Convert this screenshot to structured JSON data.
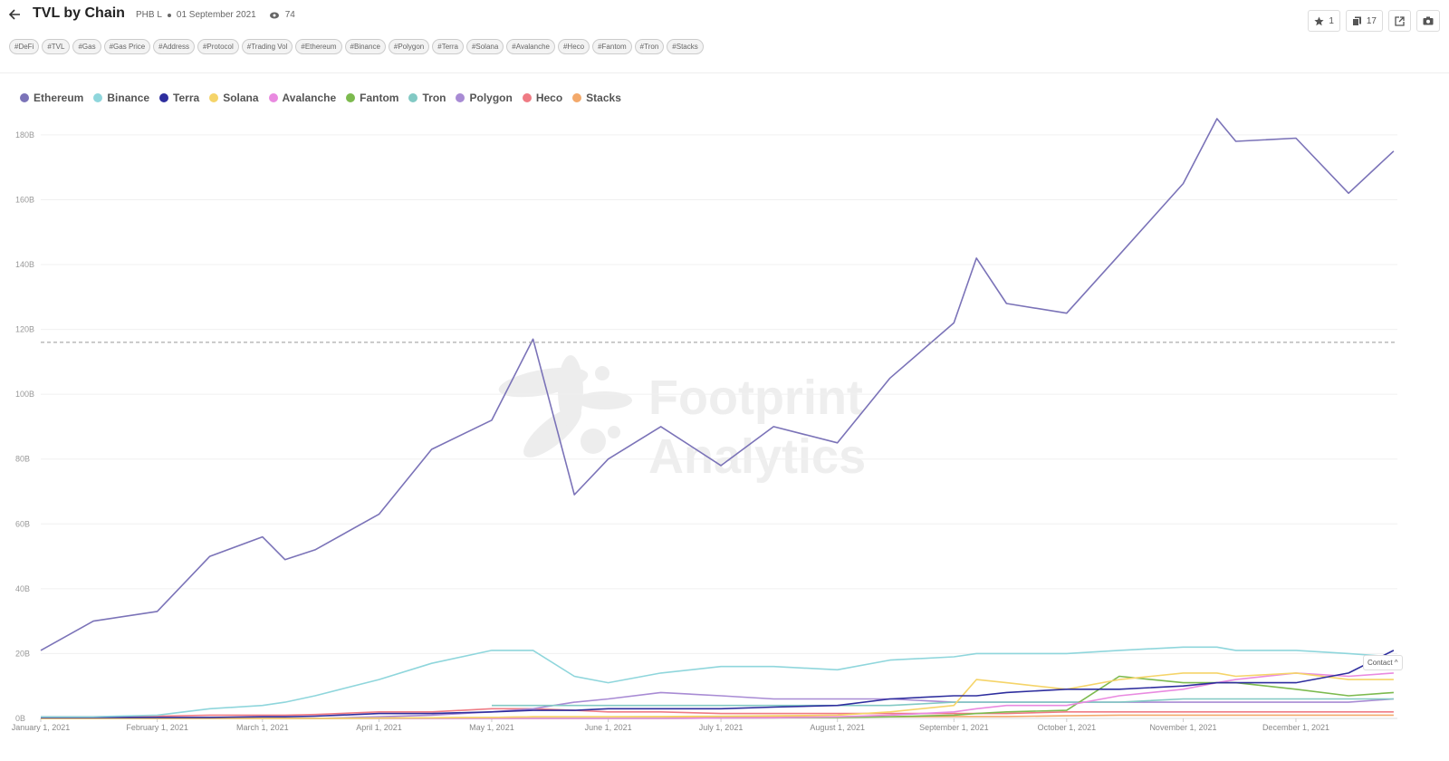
{
  "header": {
    "title": "TVL by Chain",
    "author": "PHB L",
    "date": "01 September 2021",
    "views": 74,
    "stars": 1,
    "copies": 17
  },
  "tags": [
    "#DeFi",
    "#TVL",
    "#Gas",
    "#Gas Price",
    "#Address",
    "#Protocol",
    "#Trading Vol",
    "#Ethereum",
    "#Binance",
    "#Polygon",
    "#Terra",
    "#Solana",
    "#Avalanche",
    "#Heco",
    "#Fantom",
    "#Tron",
    "#Stacks"
  ],
  "watermark": [
    "Footprint",
    "Analytics"
  ],
  "contact": "Contact",
  "chart_data": {
    "type": "line",
    "x": [
      "2021-01-01",
      "2021-01-15",
      "2021-02-01",
      "2021-02-15",
      "2021-03-01",
      "2021-03-07",
      "2021-03-15",
      "2021-04-01",
      "2021-04-15",
      "2021-05-01",
      "2021-05-12",
      "2021-05-23",
      "2021-06-01",
      "2021-06-15",
      "2021-07-01",
      "2021-07-15",
      "2021-08-01",
      "2021-08-15",
      "2021-09-01",
      "2021-09-07",
      "2021-09-15",
      "2021-10-01",
      "2021-10-15",
      "2021-11-01",
      "2021-11-10",
      "2021-11-15",
      "2021-12-01",
      "2021-12-15",
      "2021-12-27"
    ],
    "series": [
      {
        "name": "Ethereum",
        "color": "#7b73b8",
        "values": [
          21,
          30,
          33,
          50,
          56,
          49,
          52,
          63,
          83,
          92,
          117,
          69,
          80,
          90,
          78,
          90,
          85,
          105,
          122,
          142,
          128,
          125,
          143,
          165,
          185,
          178,
          179,
          162,
          175
        ]
      },
      {
        "name": "Binance",
        "color": "#8fd6dc",
        "values": [
          0.5,
          0.5,
          1,
          3,
          4,
          5,
          7,
          12,
          17,
          21,
          21,
          13,
          11,
          14,
          16,
          16,
          15,
          18,
          19,
          20,
          20,
          20,
          21,
          22,
          22,
          21,
          21,
          20,
          19
        ]
      },
      {
        "name": "Terra",
        "color": "#2e2e9e",
        "values": [
          0.3,
          0.3,
          0.3,
          0.3,
          0.5,
          0.5,
          0.7,
          1.5,
          1.5,
          2,
          2.5,
          2.5,
          3,
          3,
          3,
          3.5,
          4,
          6,
          7,
          7,
          8,
          9,
          9,
          10,
          11,
          11,
          11,
          14,
          21
        ]
      },
      {
        "name": "Solana",
        "color": "#f5d469",
        "values": [
          0,
          0,
          0,
          0,
          0,
          0,
          0,
          0.1,
          0.2,
          0.3,
          0.5,
          0.5,
          0.5,
          0.6,
          0.7,
          0.8,
          1,
          2,
          4,
          12,
          11,
          9,
          12,
          14,
          14,
          13,
          14,
          12,
          12
        ]
      },
      {
        "name": "Avalanche",
        "color": "#e98ae0",
        "values": [
          0,
          0,
          0,
          0,
          0,
          0,
          0,
          0,
          0,
          0,
          0,
          0,
          0,
          0,
          0.1,
          0.2,
          0.5,
          1,
          2,
          3,
          4,
          4,
          7,
          9,
          11,
          12,
          14,
          13,
          14
        ]
      },
      {
        "name": "Fantom",
        "color": "#7cba4e",
        "values": [
          0,
          0,
          0,
          0,
          0,
          0,
          0,
          0,
          0,
          0,
          0,
          0,
          0,
          0,
          0.1,
          0.2,
          0.3,
          0.5,
          1,
          1.5,
          2,
          2.5,
          13,
          11,
          11,
          11,
          9,
          7,
          8
        ]
      },
      {
        "name": "Tron",
        "color": "#82c9c4",
        "values": [
          null,
          null,
          null,
          null,
          null,
          null,
          null,
          null,
          null,
          4,
          4,
          4,
          4,
          4,
          4,
          4,
          4,
          4,
          5,
          5,
          5,
          5,
          5,
          6,
          6,
          6,
          6,
          6,
          6
        ]
      },
      {
        "name": "Polygon",
        "color": "#a88bd4",
        "values": [
          0,
          0,
          0,
          0,
          0,
          0,
          0,
          0.5,
          1,
          2,
          3,
          5,
          6,
          8,
          7,
          6,
          6,
          6,
          5,
          5,
          5,
          5,
          5,
          5,
          5,
          5,
          5,
          5,
          6
        ]
      },
      {
        "name": "Heco",
        "color": "#ef7b84",
        "values": [
          0.5,
          0.5,
          0.7,
          1,
          1,
          1,
          1.2,
          2,
          2,
          3,
          3,
          2.5,
          2,
          2,
          1.5,
          1.5,
          1.5,
          1.5,
          1.5,
          1.5,
          1.5,
          2,
          2,
          2,
          2,
          2,
          2,
          2,
          2
        ]
      },
      {
        "name": "Stacks",
        "color": "#f3a96b",
        "values": [
          0,
          0,
          0,
          0,
          0,
          0,
          0,
          0.1,
          0.2,
          0.3,
          0.5,
          0.5,
          0.5,
          0.5,
          0.5,
          0.5,
          0.5,
          0.5,
          0.6,
          0.6,
          0.6,
          0.8,
          1,
          1,
          1,
          1,
          1,
          1,
          1
        ]
      }
    ],
    "reference_line": 116,
    "xlim": [
      "2021-01-01",
      "2021-12-28"
    ],
    "xticks": [
      {
        "value": "2021-01-01",
        "label": "January 1, 2021"
      },
      {
        "value": "2021-02-01",
        "label": "February 1, 2021"
      },
      {
        "value": "2021-03-01",
        "label": "March 1, 2021"
      },
      {
        "value": "2021-04-01",
        "label": "April 1, 2021"
      },
      {
        "value": "2021-05-01",
        "label": "May 1, 2021"
      },
      {
        "value": "2021-06-01",
        "label": "June 1, 2021"
      },
      {
        "value": "2021-07-01",
        "label": "July 1, 2021"
      },
      {
        "value": "2021-08-01",
        "label": "August 1, 2021"
      },
      {
        "value": "2021-09-01",
        "label": "September 1, 2021"
      },
      {
        "value": "2021-10-01",
        "label": "October 1, 2021"
      },
      {
        "value": "2021-11-01",
        "label": "November 1, 2021"
      },
      {
        "value": "2021-12-01",
        "label": "December 1, 2021"
      }
    ],
    "ylim": [
      0,
      185
    ],
    "yticks": [
      {
        "value": 0,
        "label": "0B"
      },
      {
        "value": 20,
        "label": "20B"
      },
      {
        "value": 40,
        "label": "40B"
      },
      {
        "value": 60,
        "label": "60B"
      },
      {
        "value": 80,
        "label": "80B"
      },
      {
        "value": 100,
        "label": "100B"
      },
      {
        "value": 120,
        "label": "120B"
      },
      {
        "value": 140,
        "label": "140B"
      },
      {
        "value": 160,
        "label": "160B"
      },
      {
        "value": 180,
        "label": "180B"
      }
    ],
    "grid": true
  }
}
